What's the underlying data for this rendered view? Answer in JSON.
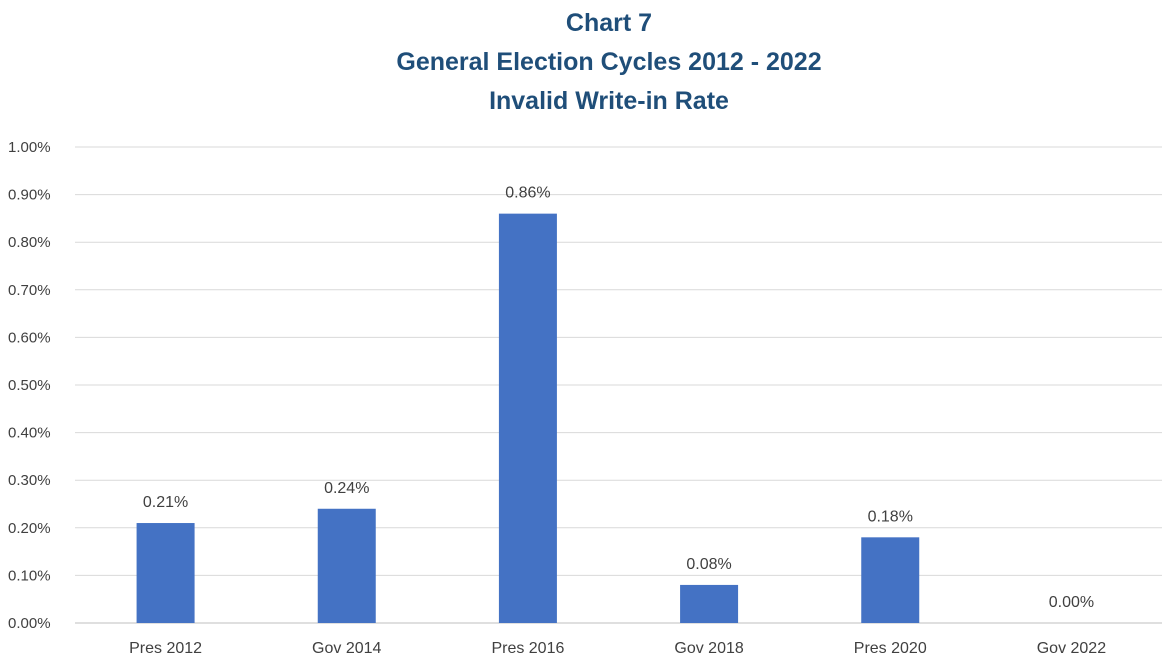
{
  "chart_data": {
    "type": "bar",
    "title": "Chart 7",
    "subtitle": "General Election Cycles 2012 - 2022",
    "subtitle2": "Invalid Write-in Rate",
    "categories": [
      "Pres 2012",
      "Gov 2014",
      "Pres 2016",
      "Gov 2018",
      "Pres 2020",
      "Gov 2022"
    ],
    "values": [
      0.21,
      0.24,
      0.86,
      0.08,
      0.18,
      0.0
    ],
    "data_labels": [
      "0.21%",
      "0.24%",
      "0.86%",
      "0.08%",
      "0.18%",
      "0.00%"
    ],
    "ylim": [
      0,
      1.0
    ],
    "yticks": [
      "0.00%",
      "0.10%",
      "0.20%",
      "0.30%",
      "0.40%",
      "0.50%",
      "0.60%",
      "0.70%",
      "0.80%",
      "0.90%",
      "1.00%"
    ],
    "xlabel": "",
    "ylabel": "",
    "grid": true,
    "legend": "none",
    "colors": {
      "bar": "#4472C4",
      "title": "#1F4E79",
      "grid": "#D9D9D9",
      "text": "#404040"
    }
  }
}
